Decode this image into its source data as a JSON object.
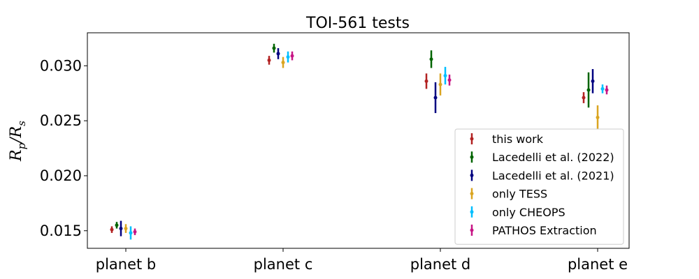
{
  "chart_data": {
    "type": "scatter",
    "title": "TOI-561 tests",
    "xlabel": "",
    "ylabel": "R_p/R_s",
    "ylabel_parts": {
      "main": "R",
      "sub1": "p",
      "slash": "/R",
      "sub2": "s"
    },
    "categories": [
      "planet b",
      "planet c",
      "planet d",
      "planet e"
    ],
    "ylim": [
      0.0134,
      0.033
    ],
    "yticks": [
      0.015,
      0.02,
      0.025,
      0.03
    ],
    "ytick_labels": [
      "0.015",
      "0.020",
      "0.025",
      "0.030"
    ],
    "legend_location": "lower right",
    "series": [
      {
        "name": "this work",
        "color": "#b22222",
        "values": [
          0.0151,
          0.0305,
          0.0286,
          0.0271
        ],
        "err": [
          0.0003,
          0.0004,
          0.0007,
          0.0005
        ]
      },
      {
        "name": "Lacedelli et al. (2022)",
        "color": "#006400",
        "values": [
          0.0155,
          0.0316,
          0.0306,
          0.0278
        ],
        "err": [
          0.0003,
          0.0004,
          0.0008,
          0.0016
        ]
      },
      {
        "name": "Lacedelli et al. (2021)",
        "color": "#000080",
        "values": [
          0.0152,
          0.0311,
          0.0271,
          0.0286
        ],
        "err": [
          0.0007,
          0.0005,
          0.0014,
          0.0011
        ]
      },
      {
        "name": "only TESS",
        "color": "#daa520",
        "values": [
          0.0152,
          0.0303,
          0.0283,
          0.0253
        ],
        "err": [
          0.0004,
          0.0005,
          0.001,
          0.0011
        ]
      },
      {
        "name": "only CHEOPS",
        "color": "#00bfff",
        "values": [
          0.0148,
          0.0308,
          0.0291,
          0.0279
        ],
        "err": [
          0.0006,
          0.0005,
          0.0008,
          0.0004
        ]
      },
      {
        "name": "PATHOS Extraction",
        "color": "#c71585",
        "values": [
          0.0149,
          0.0309,
          0.0287,
          0.0278
        ],
        "err": [
          0.0003,
          0.0004,
          0.0005,
          0.0004
        ]
      }
    ]
  }
}
